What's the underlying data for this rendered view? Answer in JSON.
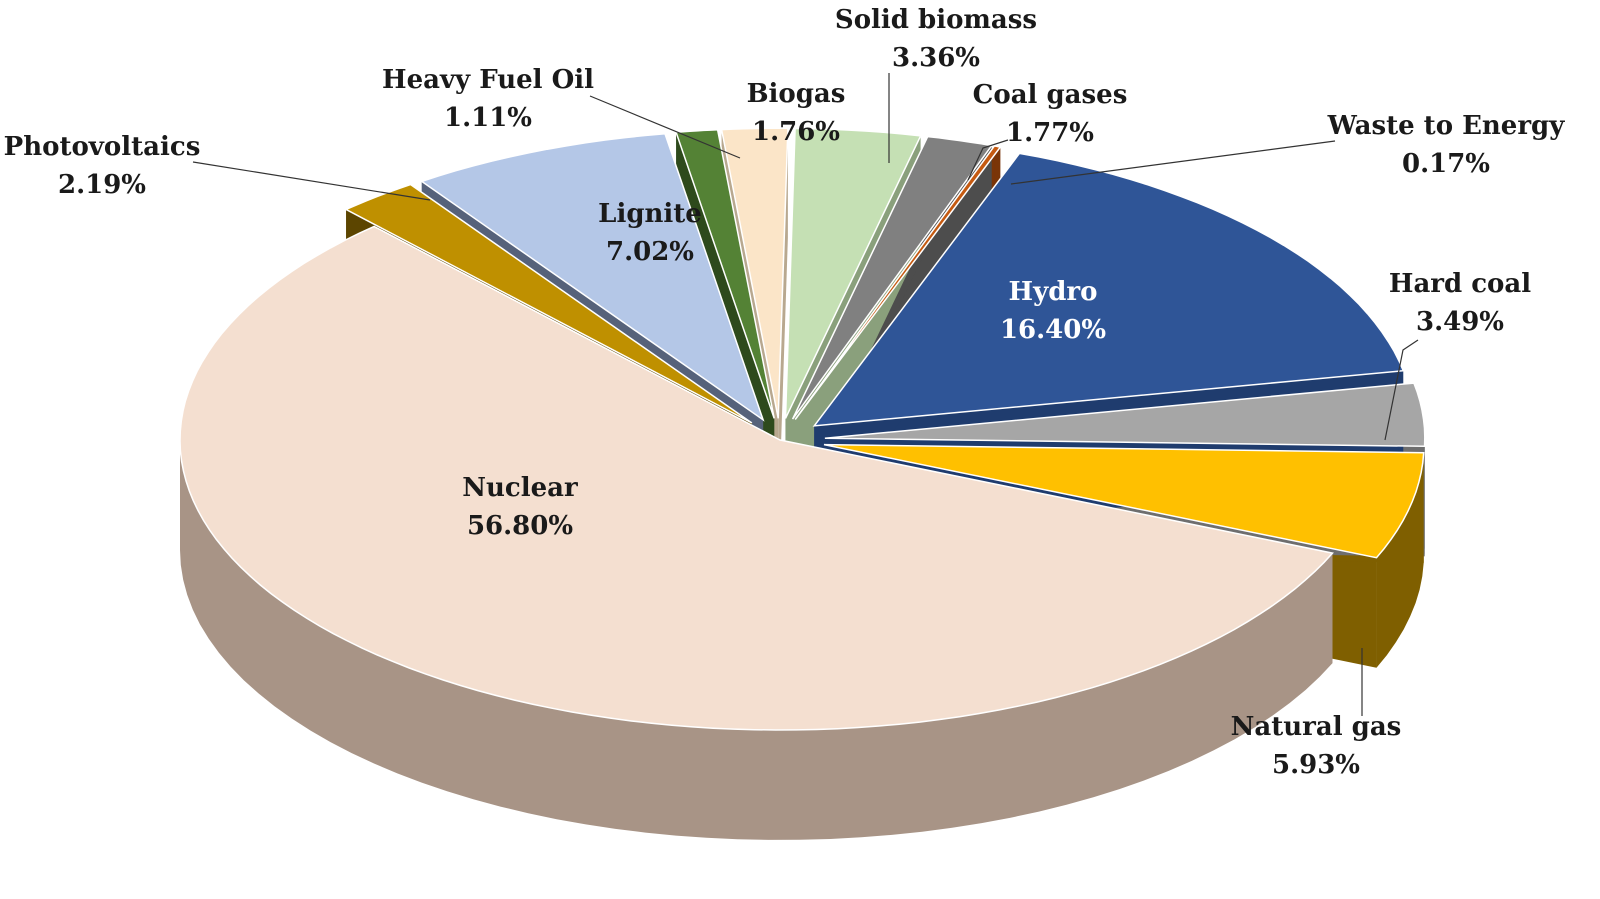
{
  "chart_data": {
    "type": "pie",
    "title": "",
    "unit": "%",
    "slices": [
      {
        "name": "Hydro",
        "value": 16.4,
        "label": "16.40%",
        "color": "#2F5597",
        "side": "#1F3C6E"
      },
      {
        "name": "Hard coal",
        "value": 3.49,
        "label": "3.49%",
        "color": "#A6A6A6",
        "side": "#6E6E6E"
      },
      {
        "name": "Natural gas",
        "value": 5.93,
        "label": "5.93%",
        "color": "#FFC000",
        "side": "#7F5F00"
      },
      {
        "name": "Nuclear",
        "value": 56.8,
        "label": "56.80%",
        "color": "#F4DFD0",
        "side": "#A89486"
      },
      {
        "name": "Photovoltaics",
        "value": 2.19,
        "label": "2.19%",
        "color": "#BF9000",
        "side": "#5C4500"
      },
      {
        "name": "Lignite",
        "value": 7.02,
        "label": "7.02%",
        "color": "#B4C7E7",
        "side": "#56627A"
      },
      {
        "name": "Heavy Fuel Oil",
        "value": 1.11,
        "label": "1.11%",
        "color": "#548235",
        "side": "#2E4A1C"
      },
      {
        "name": "Biogas",
        "value": 1.76,
        "label": "1.76%",
        "color": "#FBE5C8",
        "side": "#B8A88F"
      },
      {
        "name": "Solid biomass",
        "value": 3.36,
        "label": "3.36%",
        "color": "#C5E0B4",
        "side": "#8AA07C"
      },
      {
        "name": "Coal gases",
        "value": 1.77,
        "label": "1.77%",
        "color": "#808080",
        "side": "#4D4D4D"
      },
      {
        "name": "Waste to Energy",
        "value": 0.17,
        "label": "0.17%",
        "color": "#C55A11",
        "side": "#7A3508"
      }
    ],
    "legend": "none",
    "style": "3d-exploded"
  }
}
